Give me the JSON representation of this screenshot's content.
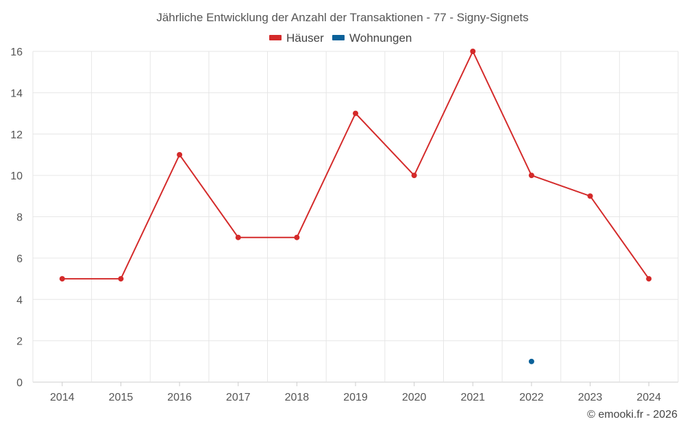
{
  "chart_data": {
    "type": "line",
    "title": "Jährliche Entwicklung der Anzahl der Transaktionen - 77 - Signy-Signets",
    "categories": [
      "2014",
      "2015",
      "2016",
      "2017",
      "2018",
      "2019",
      "2020",
      "2021",
      "2022",
      "2023",
      "2024"
    ],
    "series": [
      {
        "name": "Häuser",
        "color": "#d42a2a",
        "values": [
          5,
          5,
          11,
          7,
          7,
          13,
          10,
          16,
          10,
          9,
          5
        ]
      },
      {
        "name": "Wohnungen",
        "color": "#0a6199",
        "values": [
          null,
          null,
          null,
          null,
          null,
          null,
          null,
          null,
          1,
          null,
          null
        ]
      }
    ],
    "ylim": [
      0,
      16
    ],
    "yticks": [
      0,
      2,
      4,
      6,
      8,
      10,
      12,
      14,
      16
    ],
    "grid": true,
    "legend_position": "top-center"
  },
  "credit": "© emooki.fr - 2026"
}
